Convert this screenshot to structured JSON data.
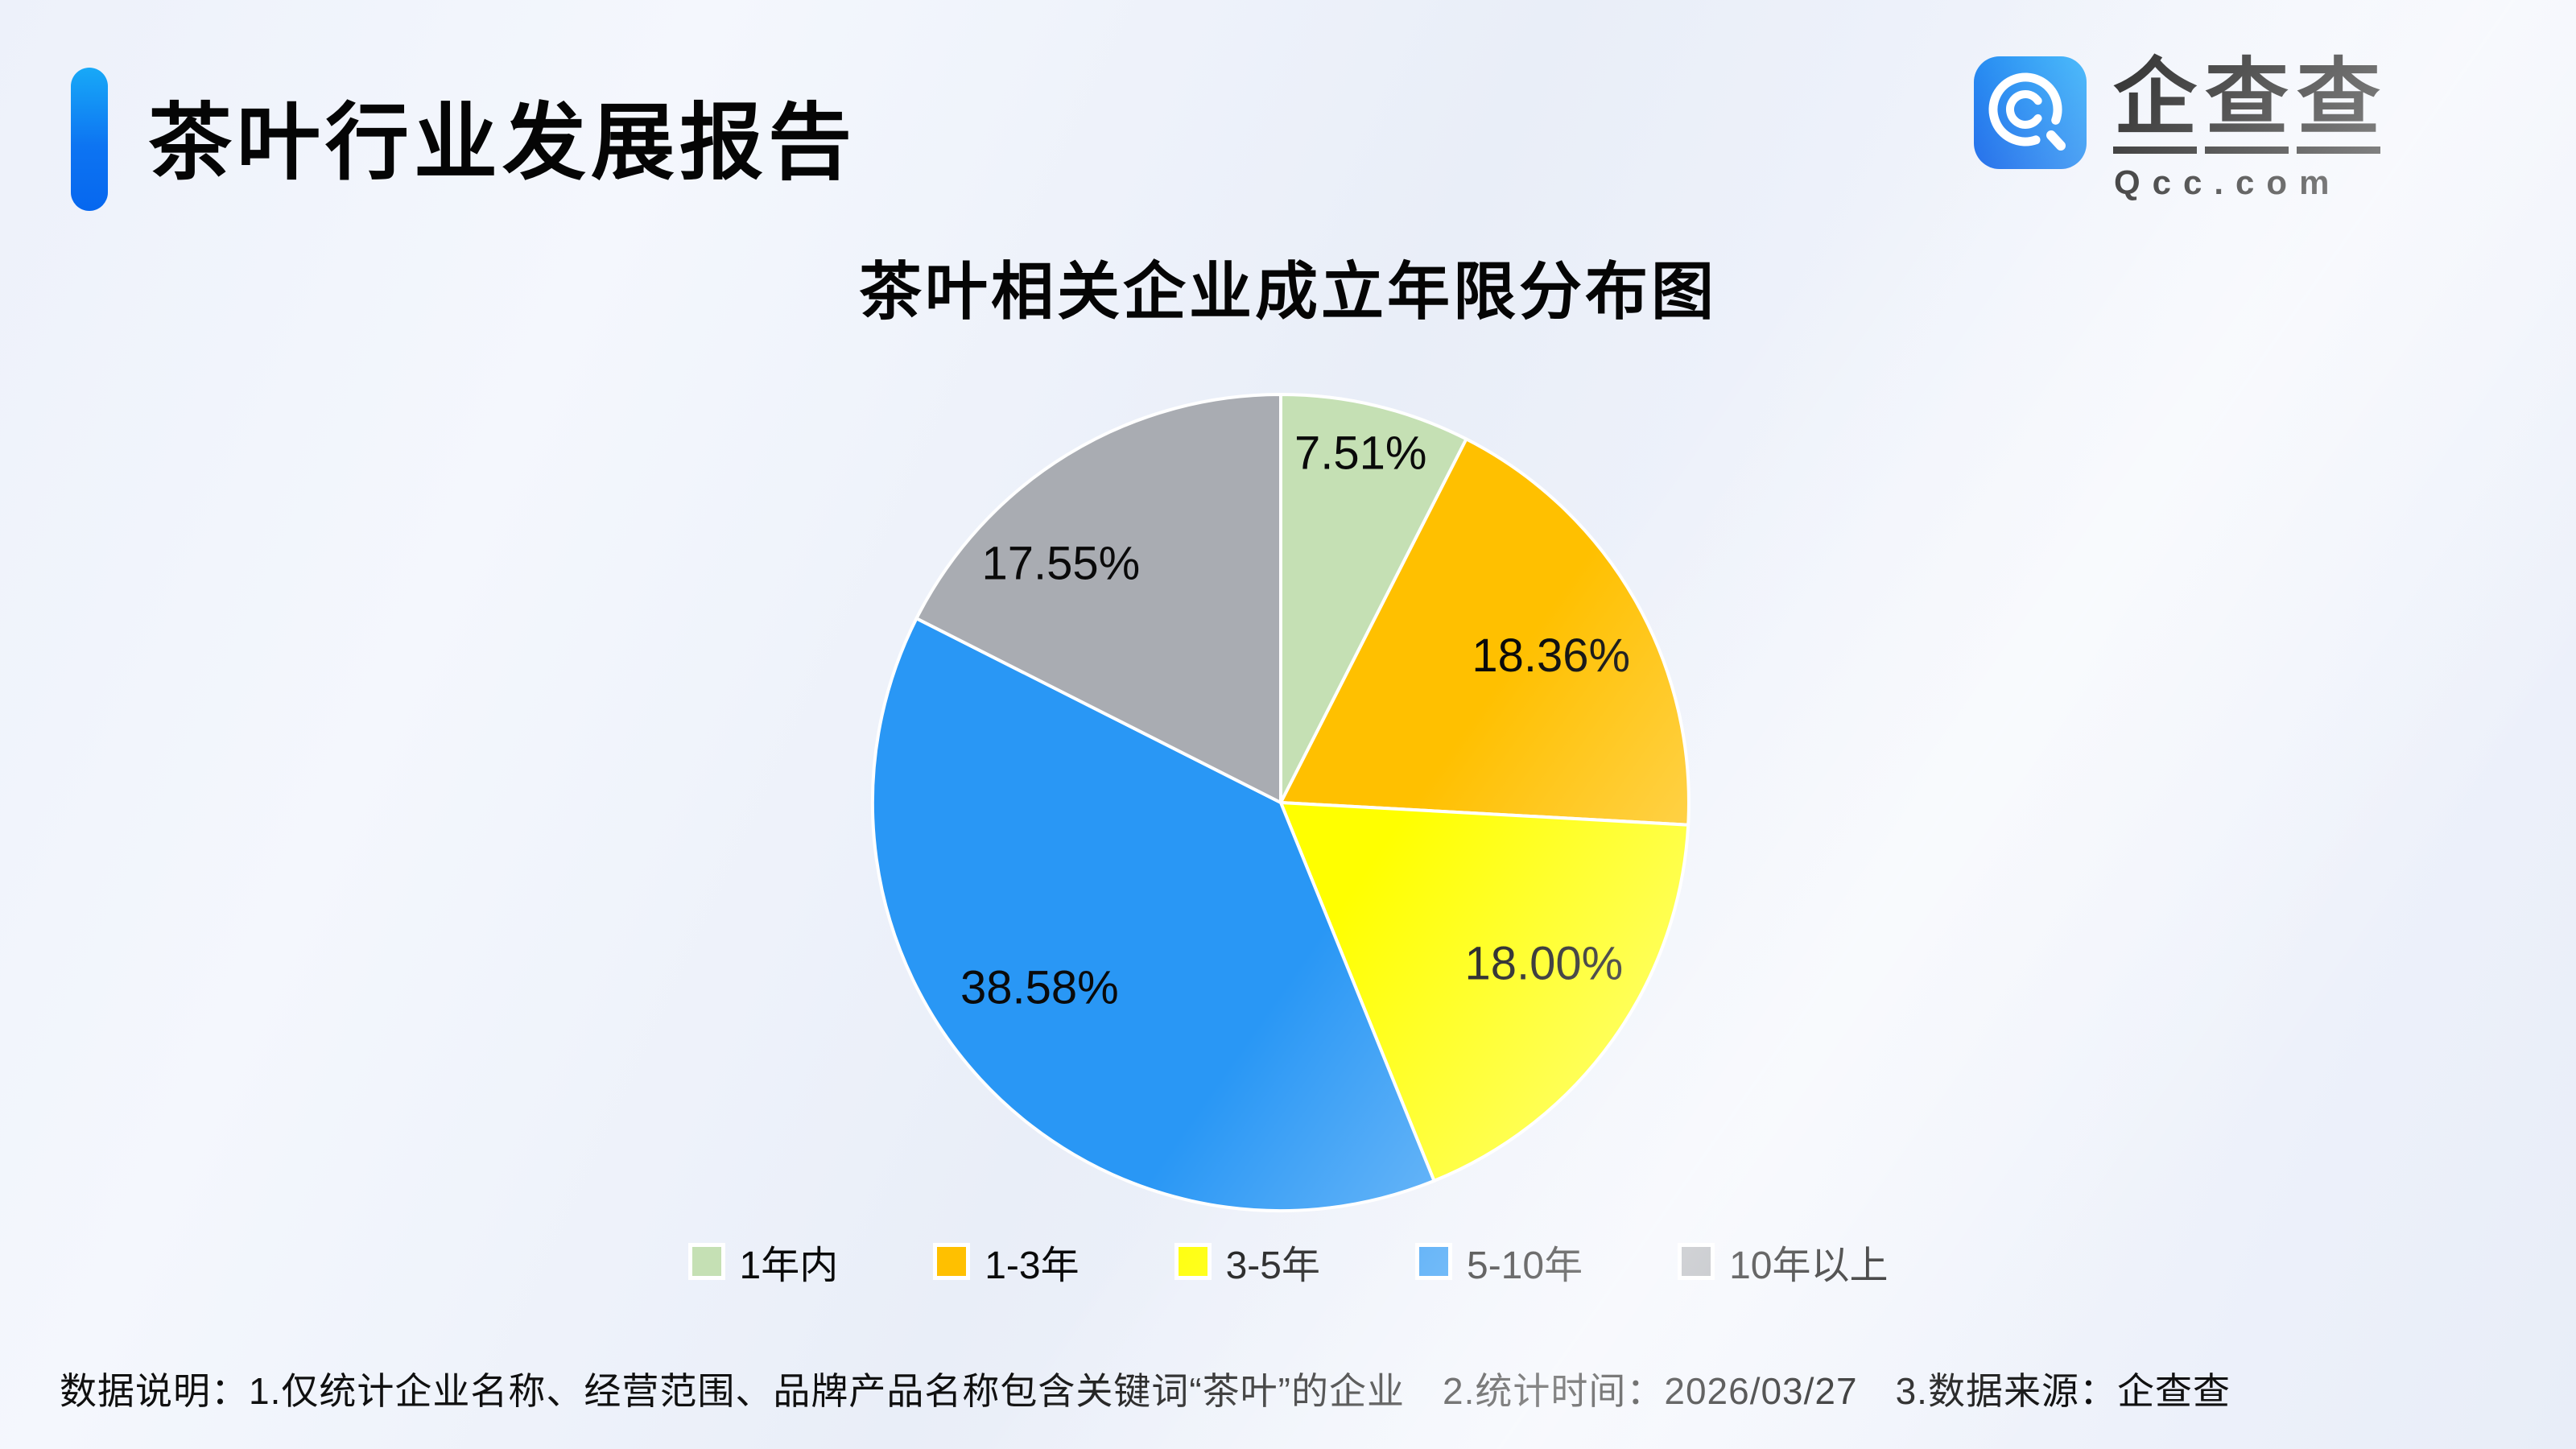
{
  "header": {
    "title": "茶叶行业发展报告"
  },
  "logo": {
    "brand": "企查查",
    "domain": "Qcc.com",
    "icon": "qcc-magnifier-icon",
    "icon_gradient": [
      "#0d5fe8",
      "#2fb0fa"
    ]
  },
  "theme": {
    "accent_blue": "#0d74f2",
    "background": "#eef2fa",
    "text_black": "#0a0a0a"
  },
  "chart_data": {
    "type": "pie",
    "title": "茶叶相关企业成立年限分布图",
    "start_angle_deg": 0,
    "direction": "clockwise",
    "legend_position": "bottom",
    "slices": [
      {
        "label": "1年内",
        "value": 7.51,
        "display": "7.51%",
        "color": "#C5E0B4",
        "label_r": 0.87,
        "label_angle_deg": 13
      },
      {
        "label": "1-3年",
        "value": 18.36,
        "display": "18.36%",
        "color": "#FFC000",
        "label_r": 0.75,
        "label_angle_deg": 62
      },
      {
        "label": "3-5年",
        "value": 18.0,
        "display": "18.00%",
        "color": "#FFFF00",
        "label_r": 0.76,
        "label_angle_deg": 122
      },
      {
        "label": "5-10年",
        "value": 38.58,
        "display": "38.58%",
        "color": "#2997F5",
        "label_r": 0.75,
        "label_angle_deg": 232
      },
      {
        "label": "10年以上",
        "value": 17.55,
        "display": "17.55%",
        "color": "#A9ACB2",
        "label_r": 0.79,
        "label_angle_deg": 317
      }
    ]
  },
  "footer": {
    "note": "数据说明：1.仅统计企业名称、经营范围、品牌产品名称包含关键词“茶叶”的企业　2.统计时间：2026/03/27　3.数据来源：企查查"
  }
}
